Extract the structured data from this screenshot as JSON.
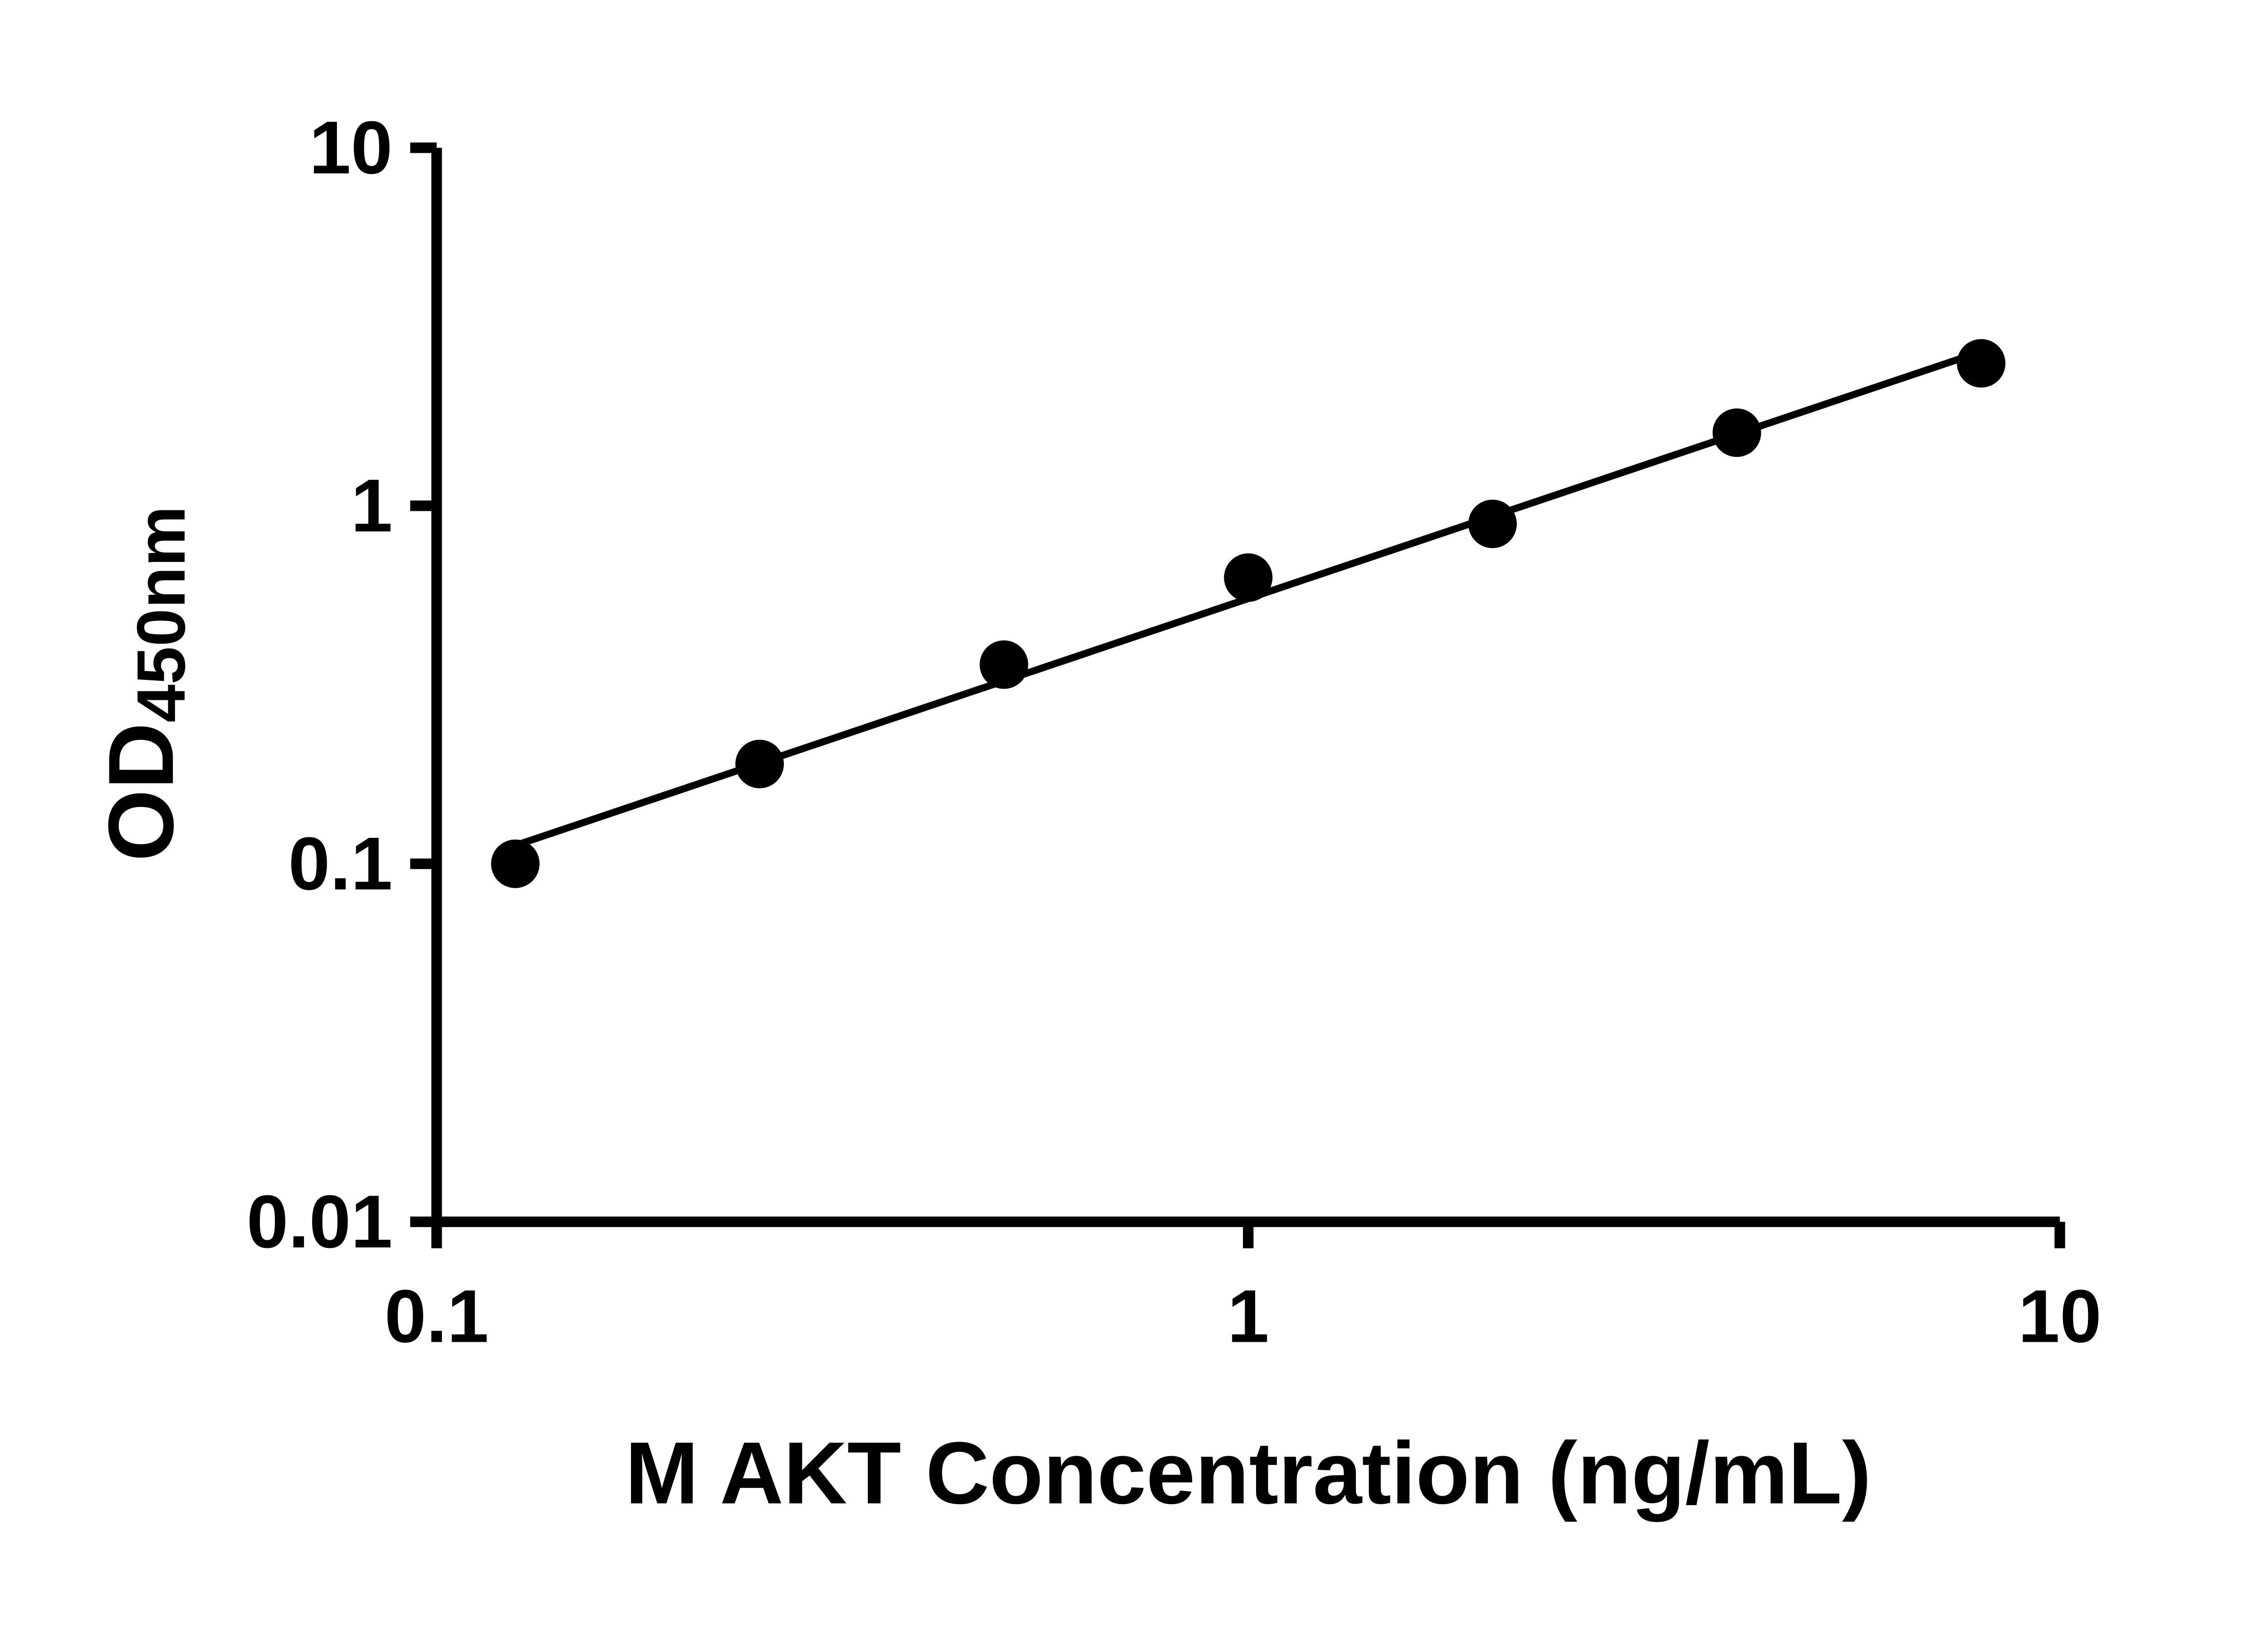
{
  "chart_data": {
    "type": "scatter",
    "title": "",
    "xlabel": "M AKT Concentration (ng/mL)",
    "ylabel": "OD",
    "ylabel_subscript": "450nm",
    "x": [
      0.125,
      0.25,
      0.5,
      1,
      2,
      4,
      8
    ],
    "y": [
      0.1,
      0.19,
      0.36,
      0.63,
      0.89,
      1.6,
      2.5
    ],
    "xscale": "log",
    "yscale": "log",
    "xlim": [
      0.1,
      10
    ],
    "ylim": [
      0.01,
      10
    ],
    "xticks": [
      {
        "value": 0.1,
        "label": "0.1"
      },
      {
        "value": 1,
        "label": "1"
      },
      {
        "value": 10,
        "label": "10"
      }
    ],
    "yticks": [
      {
        "value": 0.01,
        "label": "0.01"
      },
      {
        "value": 0.1,
        "label": "0.1"
      },
      {
        "value": 1,
        "label": "1"
      },
      {
        "value": 10,
        "label": "10"
      }
    ],
    "grid": false,
    "legend": null,
    "fit_line": "linear-in-loglog",
    "marker_color": "#000000",
    "line_color": "#000000",
    "axis_color": "#000000",
    "background": "#ffffff"
  }
}
